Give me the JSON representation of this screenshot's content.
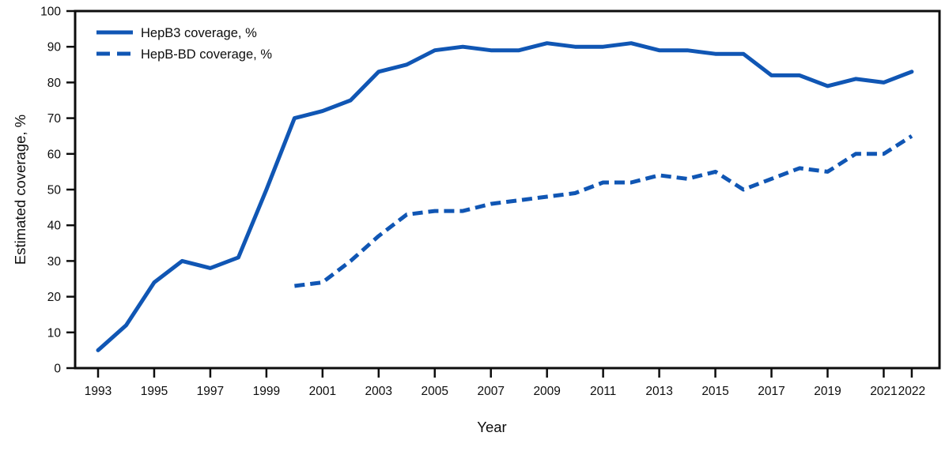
{
  "figure": {
    "background": "#ffffff"
  },
  "colors": {
    "series_blue": "#1056b4",
    "axis_black": "#0d0d0d"
  },
  "legend": {
    "position": "top-left",
    "items": [
      {
        "label": "HepB3 coverage, %",
        "line_style": "solid"
      },
      {
        "label": "HepB-BD coverage, %",
        "line_style": "dashed"
      }
    ]
  },
  "chart_data": {
    "type": "line",
    "title": "",
    "xlabel": "Year",
    "ylabel": "Estimated coverage, %",
    "ylim": [
      0,
      100
    ],
    "grid": false,
    "legend_position": "top-left",
    "y_ticks": [
      0,
      10,
      20,
      30,
      40,
      50,
      60,
      70,
      80,
      90,
      100
    ],
    "x_ticks": [
      1993,
      1995,
      1997,
      1999,
      2001,
      2003,
      2005,
      2007,
      2009,
      2011,
      2013,
      2015,
      2017,
      2019,
      2021,
      2022
    ],
    "series": [
      {
        "name": "HepB3 coverage, %",
        "style": "solid",
        "color": "#1056b4",
        "x": [
          1993,
          1994,
          1995,
          1996,
          1997,
          1998,
          1999,
          2000,
          2001,
          2002,
          2003,
          2004,
          2005,
          2006,
          2007,
          2008,
          2009,
          2010,
          2011,
          2012,
          2013,
          2014,
          2015,
          2016,
          2017,
          2018,
          2019,
          2020,
          2021,
          2022
        ],
        "values": [
          5,
          12,
          24,
          30,
          28,
          31,
          50,
          70,
          72,
          75,
          83,
          85,
          89,
          90,
          89,
          89,
          91,
          90,
          90,
          91,
          89,
          89,
          88,
          88,
          82,
          82,
          79,
          81,
          80,
          83
        ]
      },
      {
        "name": "HepB-BD coverage, %",
        "style": "dashed",
        "color": "#1056b4",
        "x": [
          2000,
          2001,
          2002,
          2003,
          2004,
          2005,
          2006,
          2007,
          2008,
          2009,
          2010,
          2011,
          2012,
          2013,
          2014,
          2015,
          2016,
          2017,
          2018,
          2019,
          2020,
          2021,
          2022
        ],
        "values": [
          23,
          24,
          30,
          37,
          43,
          44,
          44,
          46,
          47,
          48,
          49,
          52,
          52,
          54,
          53,
          55,
          50,
          53,
          56,
          55,
          60,
          60,
          65
        ]
      }
    ]
  }
}
